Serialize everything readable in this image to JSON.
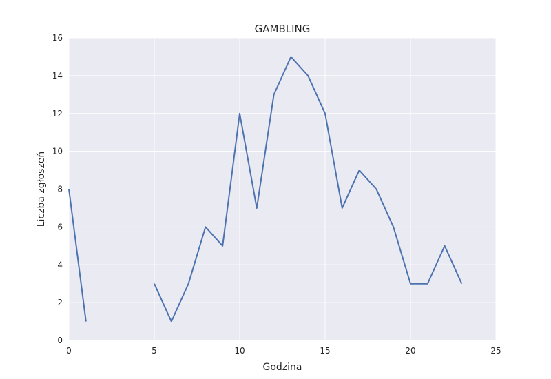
{
  "chart_data": {
    "type": "line",
    "title": "GAMBLING",
    "xlabel": "Godzina",
    "ylabel": "Liczba zgłoszeń",
    "xlim": [
      0,
      25
    ],
    "ylim": [
      0,
      16
    ],
    "xticks": [
      0,
      5,
      10,
      15,
      20,
      25
    ],
    "yticks": [
      0,
      2,
      4,
      6,
      8,
      10,
      12,
      14,
      16
    ],
    "grid": true,
    "background": "#eaeaf2",
    "grid_color": "#ffffff",
    "series": [
      {
        "color": "#4c72b0",
        "segments": [
          {
            "x": [
              0,
              1
            ],
            "y": [
              8,
              1
            ]
          },
          {
            "x": [
              5,
              6,
              7,
              8,
              9,
              10,
              11,
              12,
              13,
              14,
              15,
              16,
              17,
              18,
              19,
              20,
              21,
              22,
              23
            ],
            "y": [
              3,
              1,
              3,
              6,
              5,
              12,
              7,
              13,
              15,
              14,
              12,
              7,
              9,
              8,
              6,
              3,
              3,
              5,
              3
            ]
          }
        ]
      }
    ]
  }
}
